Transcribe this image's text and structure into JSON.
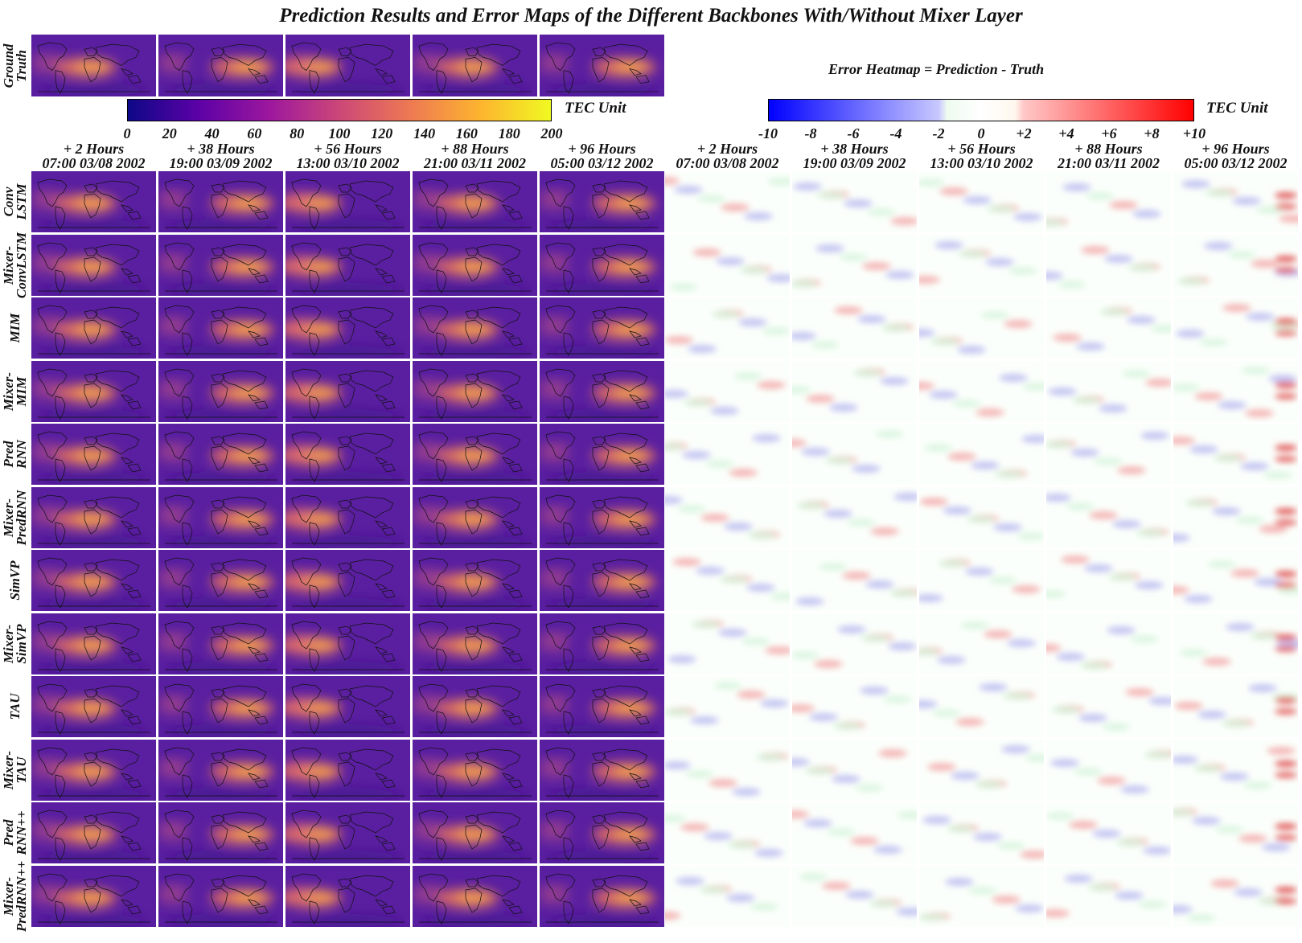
{
  "title": "Prediction Results and Error Maps of the Different Backbones With/Without Mixer Layer",
  "error_formula": "Error Heatmap = Prediction - Truth",
  "colorbars": {
    "tec": {
      "unit": "TEC Unit",
      "ticks": [
        "0",
        "20",
        "40",
        "60",
        "80",
        "100",
        "120",
        "140",
        "160",
        "180",
        "200"
      ],
      "colors": [
        "#0d0887",
        "#5c01a6",
        "#9c179e",
        "#cc4778",
        "#ed7953",
        "#fdb42f",
        "#f0f921"
      ]
    },
    "error": {
      "unit": "TEC Unit",
      "ticks": [
        "-10",
        "-8",
        "-6",
        "-4",
        "-2",
        "0",
        "+2",
        "+4",
        "+6",
        "+8",
        "+10"
      ],
      "colors": [
        "#0000ff",
        "#ffffff",
        "#ff0000"
      ]
    }
  },
  "columns": [
    {
      "lead": "+ 2 Hours",
      "time": "07:00 03/08 2002"
    },
    {
      "lead": "+ 38 Hours",
      "time": "19:00 03/09 2002"
    },
    {
      "lead": "+ 56 Hours",
      "time": "13:00 03/10 2002"
    },
    {
      "lead": "+ 88 Hours",
      "time": "21:00 03/11 2002"
    },
    {
      "lead": "+ 96 Hours",
      "time": "05:00 03/12 2002"
    }
  ],
  "ground_truth_label": [
    "Ground",
    "Truth"
  ],
  "rows": [
    {
      "label": [
        "Conv",
        "LSTM"
      ]
    },
    {
      "label": [
        "Mixer-",
        "ConvLSTM"
      ]
    },
    {
      "label": [
        "MIM"
      ]
    },
    {
      "label": [
        "Mixer-",
        "MIM"
      ]
    },
    {
      "label": [
        "Pred",
        "RNN"
      ]
    },
    {
      "label": [
        "Mixer-",
        "PredRNN"
      ]
    },
    {
      "label": [
        "SimVP"
      ]
    },
    {
      "label": [
        "Mixer-",
        "SimVP"
      ]
    },
    {
      "label": [
        "TAU"
      ]
    },
    {
      "label": [
        "Mixer-",
        "TAU"
      ]
    },
    {
      "label": [
        "Pred",
        "RNN++"
      ]
    },
    {
      "label": [
        "Mixer-",
        "PredRNN++"
      ]
    }
  ],
  "chart_data": {
    "type": "heatmap",
    "title": "Prediction Results and Error Maps of the Different Backbones With/Without Mixer Layer",
    "panels": [
      "Ground Truth",
      "Prediction",
      "Error Heatmap = Prediction - Truth"
    ],
    "tec_colorbar_range": [
      0,
      200
    ],
    "error_colorbar_range": [
      -10,
      10
    ],
    "units": "TEC Unit",
    "forecast_leads": [
      "+ 2 Hours",
      "+ 38 Hours",
      "+ 56 Hours",
      "+ 88 Hours",
      "+ 96 Hours"
    ],
    "forecast_times": [
      "07:00 03/08 2002",
      "19:00 03/09 2002",
      "13:00 03/10 2002",
      "21:00 03/11 2002",
      "05:00 03/12 2002"
    ],
    "models": [
      "ConvLSTM",
      "Mixer-ConvLSTM",
      "MIM",
      "Mixer-MIM",
      "PredRNN",
      "Mixer-PredRNN",
      "SimVP",
      "Mixer-SimVP",
      "TAU",
      "Mixer-TAU",
      "PredRNN++",
      "Mixer-PredRNN++"
    ]
  }
}
